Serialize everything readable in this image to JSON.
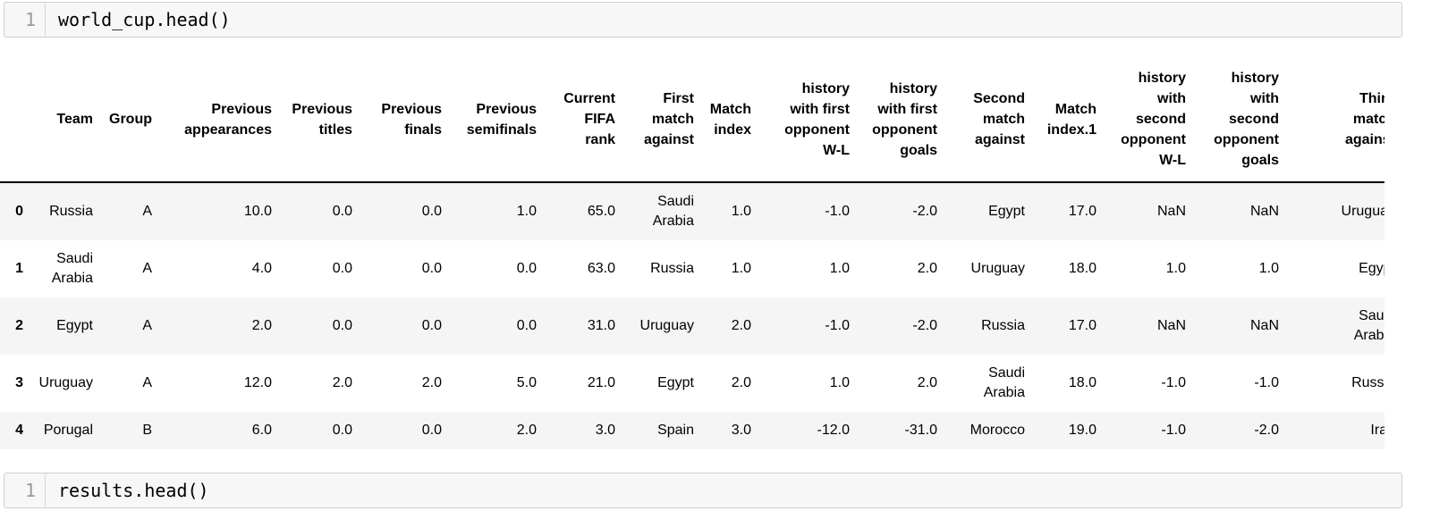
{
  "notebook": {
    "cell1": {
      "line_number": "1",
      "code": "world_cup.head()"
    },
    "cell2": {
      "line_number": "1",
      "code": "results.head()"
    }
  },
  "table": {
    "columns": [
      "",
      "Team",
      "Group",
      "Previous\nappearances",
      "Previous\ntitles",
      "Previous\nfinals",
      "Previous\nsemifinals",
      "Current\nFIFA\nrank",
      "First\nmatch\nagainst",
      "Match\nindex",
      "history\nwith first\nopponent\nW-L",
      "history\nwith first\nopponent\ngoals",
      "Second\nmatch\nagainst",
      "Match\nindex.1",
      "history\nwith\nsecond\nopponent\nW-L",
      "history\nwith\nsecond\nopponent\ngoals",
      "Third\nmatch\nagainst"
    ],
    "rows": [
      {
        "index": "0",
        "values": [
          "Russia",
          "A",
          "10.0",
          "0.0",
          "0.0",
          "1.0",
          "65.0",
          "Saudi\nArabia",
          "1.0",
          "-1.0",
          "-2.0",
          "Egypt",
          "17.0",
          "NaN",
          "NaN",
          "Uruguay"
        ]
      },
      {
        "index": "1",
        "values": [
          "Saudi\nArabia",
          "A",
          "4.0",
          "0.0",
          "0.0",
          "0.0",
          "63.0",
          "Russia",
          "1.0",
          "1.0",
          "2.0",
          "Uruguay",
          "18.0",
          "1.0",
          "1.0",
          "Egypt"
        ]
      },
      {
        "index": "2",
        "values": [
          "Egypt",
          "A",
          "2.0",
          "0.0",
          "0.0",
          "0.0",
          "31.0",
          "Uruguay",
          "2.0",
          "-1.0",
          "-2.0",
          "Russia",
          "17.0",
          "NaN",
          "NaN",
          "Saudi\nArabia"
        ]
      },
      {
        "index": "3",
        "values": [
          "Uruguay",
          "A",
          "12.0",
          "2.0",
          "2.0",
          "5.0",
          "21.0",
          "Egypt",
          "2.0",
          "1.0",
          "2.0",
          "Saudi\nArabia",
          "18.0",
          "-1.0",
          "-1.0",
          "Russia"
        ]
      },
      {
        "index": "4",
        "values": [
          "Porugal",
          "B",
          "6.0",
          "0.0",
          "0.0",
          "2.0",
          "3.0",
          "Spain",
          "3.0",
          "-12.0",
          "-31.0",
          "Morocco",
          "19.0",
          "-1.0",
          "-2.0",
          "Iran"
        ]
      }
    ]
  }
}
